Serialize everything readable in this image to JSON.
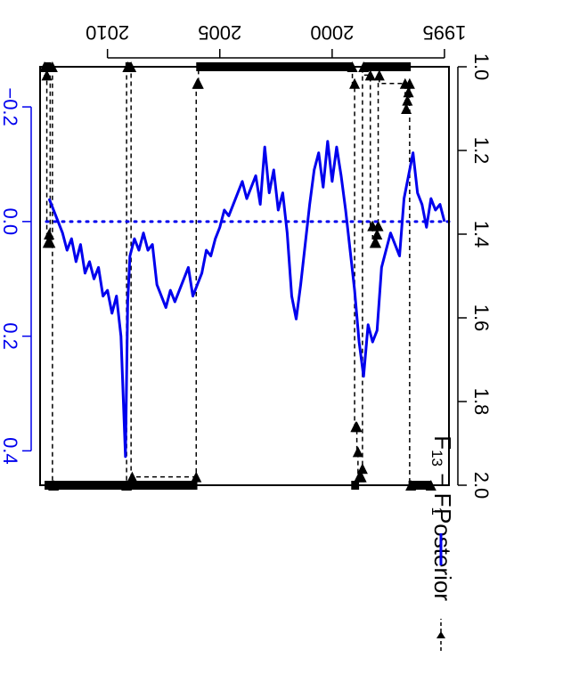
{
  "chart_data": {
    "type": "line",
    "title": "",
    "xlim": [
      1994.8,
      2013.0
    ],
    "x_ticks": [
      1995,
      2000,
      2005,
      2010
    ],
    "x_tick_labels": [
      "1995",
      "2000",
      "2005",
      "2010"
    ],
    "ylim_left": [
      1.0,
      2.0
    ],
    "y_left_ticks": [
      1.0,
      1.2,
      1.4,
      1.6,
      1.8,
      2.0
    ],
    "y_left_tick_labels": [
      "1.0",
      "1.2",
      "1.4",
      "1.6",
      "1.8",
      "2.0"
    ],
    "ylim_right": [
      -0.27,
      0.46
    ],
    "y_right_ticks": [
      -0.2,
      0.0,
      0.2,
      0.4
    ],
    "y_right_tick_labels": [
      "−0.2",
      "0.0",
      "0.2",
      "0.4"
    ],
    "zero_reference_line": 0.0,
    "grid": false,
    "legend_position": "bottom",
    "colors": {
      "posterior": "#000000",
      "difference": "#0000ee",
      "axis_right": "#0000ee"
    },
    "regime_bars": [
      {
        "level": "high",
        "from": 1995.6,
        "to": 1996.6
      },
      {
        "level": "high",
        "from": 1998.8,
        "to": 1999.15
      },
      {
        "level": "high",
        "from": 2006.0,
        "to": 2012.8
      },
      {
        "level": "low",
        "from": 1996.5,
        "to": 1998.6
      },
      {
        "level": "low",
        "from": 1999.1,
        "to": 2006.05
      },
      {
        "level": "low",
        "from": 2008.95,
        "to": 2009.2
      },
      {
        "level": "low",
        "from": 2012.5,
        "to": 2012.8
      }
    ],
    "series": [
      {
        "name": "Posterior",
        "style": "dashed-triangles",
        "x": [
          1995.5,
          1996.55,
          1996.6,
          1996.65,
          1996.7,
          1996.75,
          1996.8,
          1996.85,
          1996.9,
          1996.95,
          1997.0,
          1998.0,
          1998.05,
          1998.1,
          1998.15,
          1998.2,
          1998.25,
          1998.3,
          1998.35,
          1998.4,
          1998.45,
          1998.5,
          1998.55,
          1998.6,
          1998.65,
          1998.7,
          1998.75,
          1998.8,
          1998.85,
          1998.9,
          1998.95,
          1999.0,
          1999.05,
          1999.1,
          1999.15,
          1999.2,
          1999.25,
          1999.3,
          2006.0,
          2006.05,
          2008.9,
          2008.95,
          2009.0,
          2009.05,
          2009.1,
          2012.4,
          2012.45,
          2012.5,
          2012.55,
          2012.6,
          2012.7
        ],
        "y": [
          2.0,
          2.0,
          1.04,
          1.06,
          1.08,
          1.1,
          1.04,
          1.06,
          1.08,
          1.04,
          1.04,
          1.0,
          1.0,
          1.42,
          1.42,
          1.4,
          1.38,
          1.34,
          1.04,
          1.04,
          1.0,
          1.0,
          1.98,
          1.98,
          1.98,
          1.96,
          1.92,
          1.86,
          1.86,
          1.04,
          1.04,
          1.0,
          1.0,
          1.0,
          1.0,
          1.0,
          1.0,
          1.0,
          1.04,
          1.98,
          1.98,
          1.0,
          1.0,
          1.0,
          1.0,
          1.0,
          1.0,
          1.0,
          1.0,
          1.0,
          1.0
        ],
        "values_compact": "step series alternating between high regime (about 2.0) and low regime (about 1.0)",
        "pairs": [
          [
            1995.6,
            2.0
          ],
          [
            1996.5,
            2.0
          ],
          [
            1996.55,
            1.04
          ],
          [
            1996.6,
            1.06
          ],
          [
            1996.65,
            1.08
          ],
          [
            1996.7,
            1.1
          ],
          [
            1996.75,
            1.04
          ],
          [
            1997.9,
            1.02
          ],
          [
            1997.95,
            1.38
          ],
          [
            1998.0,
            1.4
          ],
          [
            1998.05,
            1.42
          ],
          [
            1998.1,
            1.42
          ],
          [
            1998.2,
            1.38
          ],
          [
            1998.3,
            1.02
          ],
          [
            1998.6,
            1.0
          ],
          [
            1998.65,
            1.96
          ],
          [
            1998.7,
            1.98
          ],
          [
            1998.75,
            1.98
          ],
          [
            1998.8,
            1.98
          ],
          [
            1998.85,
            1.92
          ],
          [
            1998.9,
            1.86
          ],
          [
            1998.95,
            1.86
          ],
          [
            1999.0,
            1.04
          ],
          [
            1999.1,
            1.0
          ],
          [
            2005.95,
            1.04
          ],
          [
            2006.0,
            1.04
          ],
          [
            2006.05,
            1.98
          ],
          [
            2008.9,
            1.98
          ],
          [
            2008.95,
            1.0
          ],
          [
            2009.1,
            1.0
          ],
          [
            2009.15,
            2.0
          ],
          [
            2012.4,
            2.0
          ],
          [
            2012.45,
            1.0
          ],
          [
            2012.55,
            1.42
          ],
          [
            2012.6,
            1.4
          ],
          [
            2012.65,
            1.42
          ],
          [
            2012.7,
            1.02
          ],
          [
            2012.8,
            1.0
          ]
        ]
      },
      {
        "name": "F13 − F1",
        "axis": "right",
        "x": [
          1995.0,
          1995.2,
          1995.4,
          1995.6,
          1995.8,
          1996.0,
          1996.2,
          1996.4,
          1996.6,
          1996.8,
          1997.0,
          1997.2,
          1997.4,
          1997.6,
          1997.8,
          1998.0,
          1998.2,
          1998.4,
          1998.6,
          1998.8,
          1999.0,
          1999.2,
          1999.4,
          1999.6,
          1999.8,
          2000.0,
          2000.2,
          2000.4,
          2000.6,
          2000.8,
          2001.0,
          2001.2,
          2001.4,
          2001.6,
          2001.8,
          2002.0,
          2002.2,
          2002.4,
          2002.6,
          2002.8,
          2003.0,
          2003.2,
          2003.4,
          2003.6,
          2003.8,
          2004.0,
          2004.2,
          2004.4,
          2004.6,
          2004.8,
          2005.0,
          2005.2,
          2005.4,
          2005.6,
          2005.8,
          2006.0,
          2006.2,
          2006.4,
          2006.6,
          2006.8,
          2007.0,
          2007.2,
          2007.4,
          2007.6,
          2007.8,
          2008.0,
          2008.2,
          2008.4,
          2008.6,
          2008.8,
          2009.0,
          2009.1,
          2009.2,
          2009.4,
          2009.6,
          2009.8,
          2010.0,
          2010.2,
          2010.4,
          2010.6,
          2010.8,
          2011.0,
          2011.2,
          2011.4,
          2011.6,
          2011.8,
          2012.0,
          2012.2,
          2012.4,
          2012.6
        ],
        "y": [
          0.0,
          -0.03,
          -0.02,
          -0.04,
          0.01,
          -0.03,
          -0.05,
          -0.12,
          -0.08,
          -0.04,
          0.06,
          0.04,
          0.02,
          0.05,
          0.08,
          0.19,
          0.21,
          0.18,
          0.27,
          0.21,
          0.12,
          0.05,
          -0.02,
          -0.08,
          -0.13,
          -0.07,
          -0.14,
          -0.06,
          -0.12,
          -0.09,
          -0.03,
          0.04,
          0.11,
          0.17,
          0.13,
          0.02,
          -0.05,
          -0.02,
          -0.09,
          -0.05,
          -0.13,
          -0.03,
          -0.08,
          -0.06,
          -0.04,
          -0.07,
          -0.05,
          -0.03,
          -0.01,
          -0.02,
          0.01,
          0.03,
          0.06,
          0.05,
          0.09,
          0.11,
          0.13,
          0.08,
          0.1,
          0.12,
          0.14,
          0.12,
          0.15,
          0.13,
          0.11,
          0.04,
          0.05,
          0.02,
          0.05,
          0.03,
          0.06,
          0.14,
          0.41,
          0.2,
          0.13,
          0.16,
          0.12,
          0.13,
          0.08,
          0.1,
          0.07,
          0.09,
          0.04,
          0.07,
          0.03,
          0.05,
          0.02,
          0.0,
          -0.02,
          -0.04
        ]
      }
    ],
    "legend": [
      {
        "label": "Posterior",
        "style": "dashed-triangles"
      },
      {
        "label": "F13 − F1",
        "label_base_1": "F",
        "label_sub_1": "13",
        "label_sep": " − ",
        "label_base_2": "F",
        "label_sub_2": "1",
        "style": "solid-blue"
      }
    ]
  }
}
